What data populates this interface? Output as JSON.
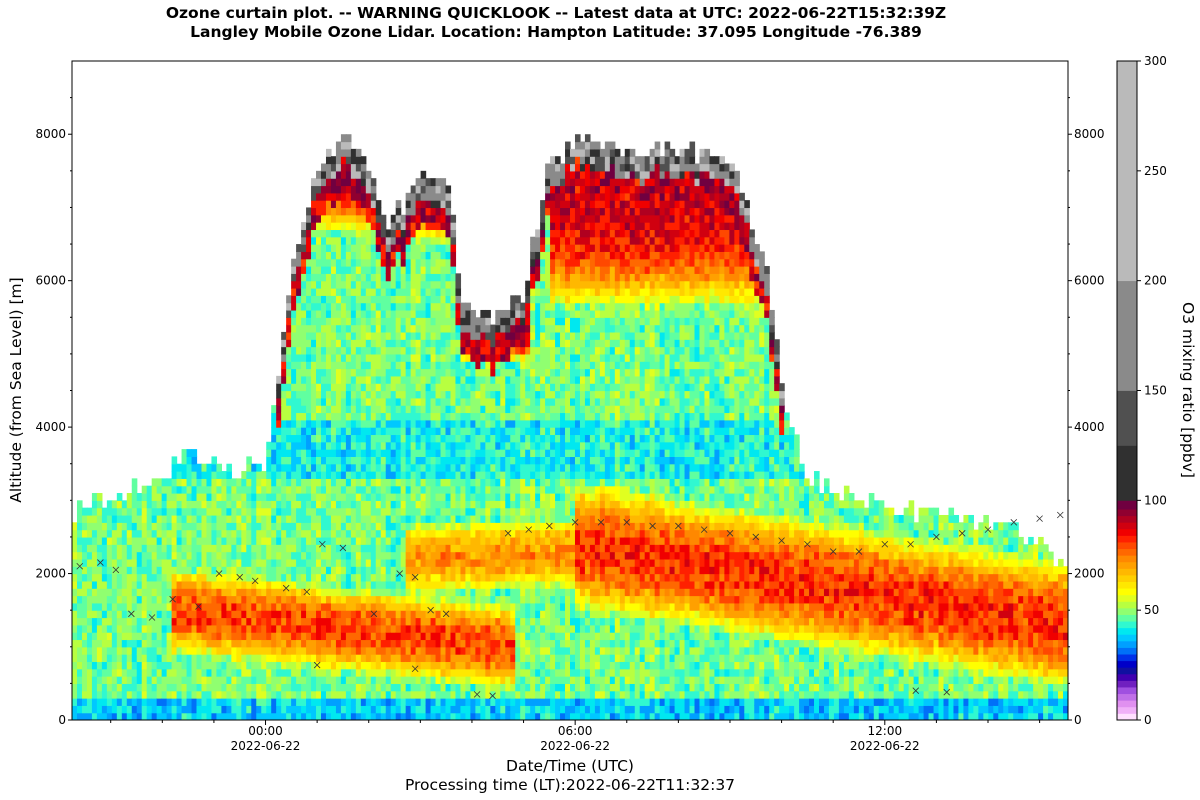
{
  "title_line1": "Ozone curtain plot. -- WARNING QUICKLOOK -- Latest data at UTC: 2022-06-22T15:32:39Z",
  "title_line2": "Langley Mobile Ozone Lidar. Location: Hampton Latitude: 37.095 Longitude -76.389",
  "xlabel": "Date/Time (UTC)",
  "ylabel": "Altitude (from Sea Level) [m]",
  "processing_time": "Processing time (LT):2022-06-22T11:32:37",
  "chart_data": {
    "type": "heatmap",
    "x_unit": "hours since 2022-06-22T00:00Z",
    "xlim": [
      -3.75,
      15.55
    ],
    "x_ticks": [
      {
        "value": 0,
        "time": "00:00",
        "date": "2022-06-22"
      },
      {
        "value": 6,
        "time": "06:00",
        "date": "2022-06-22"
      },
      {
        "value": 12,
        "time": "12:00",
        "date": "2022-06-22"
      }
    ],
    "ylim": [
      0,
      9000
    ],
    "y_ticks": [
      0,
      2000,
      4000,
      6000,
      8000
    ],
    "colorbar": {
      "label": "O3 mixing ratio [ppbv]",
      "range": [
        0,
        300
      ],
      "ticks": [
        0,
        50,
        100,
        150,
        200,
        250,
        300
      ],
      "levels": [
        {
          "from": 0,
          "to": 3,
          "color": "#ffe0ff"
        },
        {
          "from": 3,
          "to": 6,
          "color": "#f0b0f8"
        },
        {
          "from": 6,
          "to": 9,
          "color": "#e090f0"
        },
        {
          "from": 9,
          "to": 12,
          "color": "#c070e8"
        },
        {
          "from": 12,
          "to": 15,
          "color": "#a050e0"
        },
        {
          "from": 15,
          "to": 18,
          "color": "#7020c0"
        },
        {
          "from": 18,
          "to": 21,
          "color": "#4000b0"
        },
        {
          "from": 21,
          "to": 24,
          "color": "#1010a0"
        },
        {
          "from": 24,
          "to": 27,
          "color": "#0000c8"
        },
        {
          "from": 27,
          "to": 30,
          "color": "#0030e8"
        },
        {
          "from": 30,
          "to": 33,
          "color": "#0070f8"
        },
        {
          "from": 33,
          "to": 36,
          "color": "#00a0ff"
        },
        {
          "from": 36,
          "to": 39,
          "color": "#00c8ff"
        },
        {
          "from": 39,
          "to": 42,
          "color": "#00e8f0"
        },
        {
          "from": 42,
          "to": 45,
          "color": "#30f8d0"
        },
        {
          "from": 45,
          "to": 48,
          "color": "#60ffa0"
        },
        {
          "from": 48,
          "to": 51,
          "color": "#90ff70"
        },
        {
          "from": 51,
          "to": 54,
          "color": "#b8ff40"
        },
        {
          "from": 54,
          "to": 57,
          "color": "#e0ff20"
        },
        {
          "from": 57,
          "to": 60,
          "color": "#ffff00"
        },
        {
          "from": 60,
          "to": 63,
          "color": "#ffe800"
        },
        {
          "from": 63,
          "to": 66,
          "color": "#ffd000"
        },
        {
          "from": 66,
          "to": 69,
          "color": "#ffb800"
        },
        {
          "from": 69,
          "to": 72,
          "color": "#ffa000"
        },
        {
          "from": 72,
          "to": 75,
          "color": "#ff8800"
        },
        {
          "from": 75,
          "to": 78,
          "color": "#ff6800"
        },
        {
          "from": 78,
          "to": 81,
          "color": "#ff4800"
        },
        {
          "from": 81,
          "to": 84,
          "color": "#ff2000"
        },
        {
          "from": 84,
          "to": 87,
          "color": "#f00000"
        },
        {
          "from": 87,
          "to": 90,
          "color": "#d00010"
        },
        {
          "from": 90,
          "to": 93,
          "color": "#b00020"
        },
        {
          "from": 93,
          "to": 96,
          "color": "#900030"
        },
        {
          "from": 96,
          "to": 100,
          "color": "#700040"
        },
        {
          "from": 100,
          "to": 125,
          "color": "#303030"
        },
        {
          "from": 125,
          "to": 150,
          "color": "#505050"
        },
        {
          "from": 150,
          "to": 200,
          "color": "#8a8a8a"
        },
        {
          "from": 200,
          "to": 300,
          "color": "#bababa"
        }
      ]
    },
    "data_top_profile": [
      {
        "x": -3.75,
        "y": 2850
      },
      {
        "x": -3,
        "y": 3050
      },
      {
        "x": -2,
        "y": 3300
      },
      {
        "x": -1.5,
        "y": 3700
      },
      {
        "x": -0.7,
        "y": 3400
      },
      {
        "x": 0,
        "y": 3500
      },
      {
        "x": 0.2,
        "y": 4400
      },
      {
        "x": 0.4,
        "y": 5500
      },
      {
        "x": 0.6,
        "y": 6500
      },
      {
        "x": 1,
        "y": 7500
      },
      {
        "x": 1.5,
        "y": 8000
      },
      {
        "x": 2.1,
        "y": 7300
      },
      {
        "x": 2.4,
        "y": 6700
      },
      {
        "x": 2.7,
        "y": 7100
      },
      {
        "x": 3,
        "y": 7500
      },
      {
        "x": 3.6,
        "y": 7200
      },
      {
        "x": 3.8,
        "y": 5600
      },
      {
        "x": 4.5,
        "y": 5500
      },
      {
        "x": 5,
        "y": 5800
      },
      {
        "x": 5.5,
        "y": 7600
      },
      {
        "x": 6,
        "y": 7900
      },
      {
        "x": 7,
        "y": 7800
      },
      {
        "x": 8,
        "y": 7800
      },
      {
        "x": 9,
        "y": 7700
      },
      {
        "x": 9.7,
        "y": 6200
      },
      {
        "x": 10.1,
        "y": 4200
      },
      {
        "x": 10.5,
        "y": 3300
      },
      {
        "x": 12,
        "y": 2900
      },
      {
        "x": 13,
        "y": 2800
      },
      {
        "x": 14,
        "y": 2700
      },
      {
        "x": 14.8,
        "y": 2500
      },
      {
        "x": 15.55,
        "y": 2100
      }
    ],
    "background_ozone_ppbv": 48,
    "enhanced_layers": [
      {
        "x": [
          -1.8,
          4.8
        ],
        "y_center": [
          1500,
          1000
        ],
        "thickness": 600,
        "ozone_ppbv": 80
      },
      {
        "x": [
          2.7,
          6.2
        ],
        "y_center": [
          2200,
          2300
        ],
        "thickness": 500,
        "ozone_ppbv": 72
      },
      {
        "x": [
          6,
          15.55
        ],
        "y_center": [
          2400,
          1300
        ],
        "thickness": 900,
        "ozone_ppbv": 82
      },
      {
        "x": [
          0.6,
          3.8
        ],
        "y_center": [
          7500,
          7300
        ],
        "thickness": 800,
        "ozone_ppbv": 90
      },
      {
        "x": [
          3.8,
          5.1
        ],
        "y_center": [
          5300,
          5300
        ],
        "thickness": 400,
        "ozone_ppbv": 90
      },
      {
        "x": [
          5.5,
          9.8
        ],
        "y_center": [
          6900,
          6900
        ],
        "thickness": 1300,
        "ozone_ppbv": 88
      }
    ],
    "boundary_layer_markers": [
      {
        "x": -3.6,
        "y": 2100
      },
      {
        "x": -3.2,
        "y": 2150
      },
      {
        "x": -2.9,
        "y": 2050
      },
      {
        "x": -2.6,
        "y": 1450
      },
      {
        "x": -2.2,
        "y": 1400
      },
      {
        "x": -1.8,
        "y": 1650
      },
      {
        "x": -1.3,
        "y": 1550
      },
      {
        "x": -0.9,
        "y": 2000
      },
      {
        "x": -0.5,
        "y": 1950
      },
      {
        "x": -0.2,
        "y": 1900
      },
      {
        "x": 0.4,
        "y": 1800
      },
      {
        "x": 0.8,
        "y": 1750
      },
      {
        "x": 1.1,
        "y": 2400
      },
      {
        "x": 1.5,
        "y": 2350
      },
      {
        "x": 2.1,
        "y": 1450
      },
      {
        "x": 2.6,
        "y": 2000
      },
      {
        "x": 2.9,
        "y": 1950
      },
      {
        "x": 3.2,
        "y": 1500
      },
      {
        "x": 3.5,
        "y": 1450
      },
      {
        "x": 4.1,
        "y": 350
      },
      {
        "x": 4.4,
        "y": 330
      },
      {
        "x": 4.7,
        "y": 2550
      },
      {
        "x": 5.1,
        "y": 2600
      },
      {
        "x": 5.5,
        "y": 2650
      },
      {
        "x": 6,
        "y": 2700
      },
      {
        "x": 6.5,
        "y": 2700
      },
      {
        "x": 7,
        "y": 2700
      },
      {
        "x": 7.5,
        "y": 2650
      },
      {
        "x": 8,
        "y": 2650
      },
      {
        "x": 8.5,
        "y": 2600
      },
      {
        "x": 9,
        "y": 2550
      },
      {
        "x": 9.5,
        "y": 2500
      },
      {
        "x": 10,
        "y": 2450
      },
      {
        "x": 10.5,
        "y": 2400
      },
      {
        "x": 11,
        "y": 2300
      },
      {
        "x": 11.5,
        "y": 2300
      },
      {
        "x": 12,
        "y": 2400
      },
      {
        "x": 12.5,
        "y": 2400
      },
      {
        "x": 13,
        "y": 2500
      },
      {
        "x": 13.5,
        "y": 2550
      },
      {
        "x": 14,
        "y": 2600
      },
      {
        "x": 14.5,
        "y": 2700
      },
      {
        "x": 15,
        "y": 2750
      },
      {
        "x": 15.4,
        "y": 2800
      },
      {
        "x": 1,
        "y": 750
      },
      {
        "x": 2.9,
        "y": 700
      },
      {
        "x": 12.6,
        "y": 400
      },
      {
        "x": 13.2,
        "y": 380
      }
    ]
  }
}
